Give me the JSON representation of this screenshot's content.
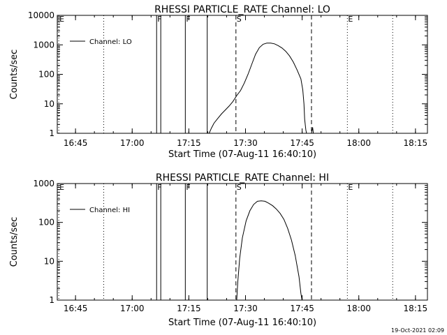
{
  "timestamp": "19-Oct-2021 02:09",
  "chart_data": [
    {
      "type": "line",
      "title": "RHESSI PARTICLE_RATE Channel: LO",
      "xlabel": "Start Time (07-Aug-11 16:40:10)",
      "ylabel": "Counts/sec",
      "yscale": "log",
      "ylim": [
        1,
        10000
      ],
      "xlim_minutes": [
        0,
        98
      ],
      "x_ticks": [
        {
          "t": 4.83,
          "label": "16:45"
        },
        {
          "t": 19.83,
          "label": "17:00"
        },
        {
          "t": 34.83,
          "label": "17:15"
        },
        {
          "t": 49.83,
          "label": "17:30"
        },
        {
          "t": 64.83,
          "label": "17:45"
        },
        {
          "t": 79.83,
          "label": "18:00"
        },
        {
          "t": 94.83,
          "label": "18:15"
        }
      ],
      "y_ticks": [
        {
          "v": 1,
          "label": "1"
        },
        {
          "v": 10,
          "label": "10"
        },
        {
          "v": 100,
          "label": "100"
        },
        {
          "v": 1000,
          "label": "1000"
        },
        {
          "v": 10000,
          "label": "10000"
        }
      ],
      "legend": {
        "label": "Channel: LO",
        "position": "top-left"
      },
      "markers": [
        {
          "t": 0.4,
          "label": "E",
          "style": "dotted"
        },
        {
          "t": 12.3,
          "label": "",
          "style": "dotted"
        },
        {
          "t": 26.3,
          "label": "F",
          "style": "solid"
        },
        {
          "t": 27.4,
          "label": "",
          "style": "solid"
        },
        {
          "t": 33.9,
          "label": "F",
          "style": "solid"
        },
        {
          "t": 39.7,
          "label": "",
          "style": "solid"
        },
        {
          "t": 47.3,
          "label": "S",
          "style": "dashed"
        },
        {
          "t": 67.3,
          "label": "",
          "style": "dashed"
        },
        {
          "t": 76.8,
          "label": "E",
          "style": "dotted"
        },
        {
          "t": 88.8,
          "label": "",
          "style": "dotted"
        }
      ],
      "series": [
        {
          "name": "Channel: LO",
          "segments": [
            [
              [
                40.2,
                1
              ],
              [
                40.8,
                1.5
              ],
              [
                41.5,
                2.2
              ],
              [
                42.5,
                3.2
              ],
              [
                43.5,
                4.6
              ],
              [
                44.5,
                6.2
              ],
              [
                45.5,
                8.4
              ],
              [
                46.5,
                12
              ],
              [
                47.5,
                19
              ],
              [
                48.5,
                28
              ],
              [
                49.5,
                50
              ],
              [
                50.5,
                100
              ],
              [
                51.5,
                220
              ],
              [
                52.5,
                480
              ],
              [
                53.5,
                800
              ],
              [
                54.5,
                1050
              ],
              [
                55.5,
                1150
              ],
              [
                56.5,
                1140
              ],
              [
                57.5,
                1080
              ],
              [
                58.5,
                940
              ],
              [
                59.5,
                780
              ],
              [
                60.5,
                600
              ],
              [
                61.5,
                420
              ],
              [
                62.5,
                260
              ],
              [
                63.5,
                140
              ],
              [
                64.5,
                70
              ],
              [
                65.0,
                30
              ],
              [
                65.3,
                10
              ],
              [
                65.5,
                3
              ],
              [
                65.8,
                1.3
              ],
              [
                66.0,
                1
              ]
            ],
            [
              [
                67.3,
                1
              ],
              [
                67.6,
                1.6
              ],
              [
                67.8,
                1
              ]
            ]
          ]
        }
      ]
    },
    {
      "type": "line",
      "title": "RHESSI PARTICLE_RATE Channel: HI",
      "xlabel": "Start Time (07-Aug-11 16:40:10)",
      "ylabel": "Counts/sec",
      "yscale": "log",
      "ylim": [
        1,
        1000
      ],
      "xlim_minutes": [
        0,
        98
      ],
      "x_ticks": [
        {
          "t": 4.83,
          "label": "16:45"
        },
        {
          "t": 19.83,
          "label": "17:00"
        },
        {
          "t": 34.83,
          "label": "17:15"
        },
        {
          "t": 49.83,
          "label": "17:30"
        },
        {
          "t": 64.83,
          "label": "17:45"
        },
        {
          "t": 79.83,
          "label": "18:00"
        },
        {
          "t": 94.83,
          "label": "18:15"
        }
      ],
      "y_ticks": [
        {
          "v": 1,
          "label": "1"
        },
        {
          "v": 10,
          "label": "10"
        },
        {
          "v": 100,
          "label": "100"
        },
        {
          "v": 1000,
          "label": "1000"
        }
      ],
      "legend": {
        "label": "Channel: HI",
        "position": "top-left"
      },
      "markers": [
        {
          "t": 0.4,
          "label": "E",
          "style": "dotted"
        },
        {
          "t": 12.3,
          "label": "",
          "style": "dotted"
        },
        {
          "t": 26.3,
          "label": "F",
          "style": "solid"
        },
        {
          "t": 27.4,
          "label": "",
          "style": "solid"
        },
        {
          "t": 33.9,
          "label": "F",
          "style": "solid"
        },
        {
          "t": 39.7,
          "label": "",
          "style": "solid"
        },
        {
          "t": 47.3,
          "label": "S",
          "style": "dashed"
        },
        {
          "t": 67.3,
          "label": "",
          "style": "dashed"
        },
        {
          "t": 76.8,
          "label": "E",
          "style": "dotted"
        },
        {
          "t": 88.8,
          "label": "",
          "style": "dotted"
        }
      ],
      "series": [
        {
          "name": "Channel: HI",
          "segments": [
            [
              [
                47.5,
                1
              ],
              [
                47.8,
                3
              ],
              [
                48.3,
                12
              ],
              [
                49.0,
                40
              ],
              [
                50.0,
                110
              ],
              [
                51.0,
                200
              ],
              [
                52.0,
                290
              ],
              [
                53.0,
                350
              ],
              [
                54.0,
                360
              ],
              [
                55.0,
                350
              ],
              [
                56.0,
                310
              ],
              [
                57.0,
                270
              ],
              [
                58.0,
                220
              ],
              [
                59.0,
                170
              ],
              [
                60.0,
                120
              ],
              [
                61.0,
                70
              ],
              [
                62.0,
                35
              ],
              [
                63.0,
                14
              ],
              [
                64.0,
                4
              ],
              [
                64.5,
                1.5
              ],
              [
                64.8,
                1
              ]
            ]
          ]
        }
      ]
    }
  ]
}
